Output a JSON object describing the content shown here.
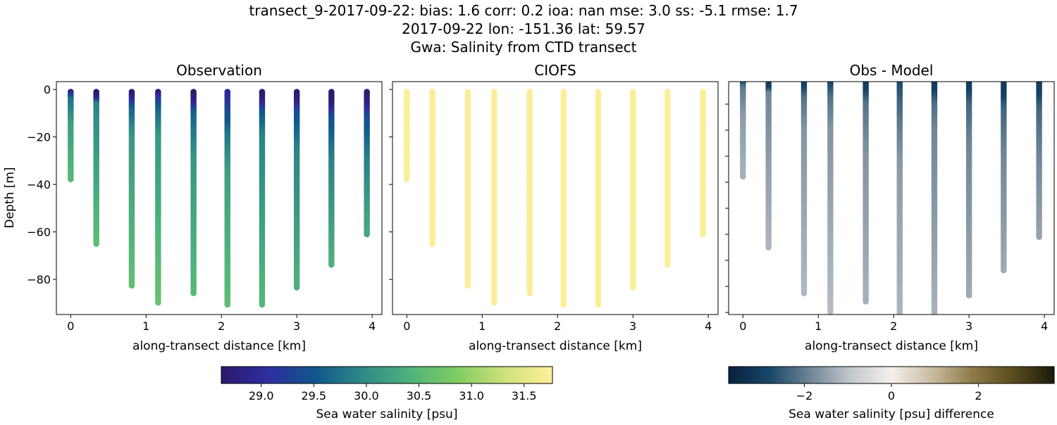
{
  "title_lines": [
    "transect_9-2017-09-22: bias: 1.6  corr: 0.2  ioa: nan  mse: 3.0  ss: -5.1  rmse: 1.7",
    "2017-09-22 lon: -151.36 lat: 59.57",
    "Gwa: Salinity from CTD transect"
  ],
  "chart_data": [
    {
      "type": "scatter",
      "title": "Observation",
      "xlabel": "along-transect distance [km]",
      "ylabel": "Depth [m]",
      "xlim": [
        -0.19,
        4.13
      ],
      "ylim": [
        -94.8,
        3.3
      ],
      "xticks": [
        0,
        1,
        2,
        3,
        4
      ],
      "yticks": [
        0,
        -20,
        -40,
        -60,
        -80
      ],
      "colormap": "haline",
      "stations": [
        {
          "x": 0.0,
          "max_depth": 38,
          "profile": [
            [
              1,
              28.7
            ],
            [
              4,
              29.7
            ],
            [
              15,
              30.2
            ],
            [
              38,
              30.5
            ]
          ]
        },
        {
          "x": 0.34,
          "max_depth": 65,
          "profile": [
            [
              1,
              28.6
            ],
            [
              4,
              28.8
            ],
            [
              6,
              29.9
            ],
            [
              30,
              30.2
            ],
            [
              65,
              30.55
            ]
          ]
        },
        {
          "x": 0.81,
          "max_depth": 83,
          "profile": [
            [
              1,
              28.6
            ],
            [
              4,
              28.9
            ],
            [
              8,
              29.6
            ],
            [
              20,
              30.1
            ],
            [
              83,
              30.6
            ]
          ]
        },
        {
          "x": 1.16,
          "max_depth": 90,
          "profile": [
            [
              1,
              28.6
            ],
            [
              3,
              29.0
            ],
            [
              8,
              29.6
            ],
            [
              20,
              30.1
            ],
            [
              90,
              30.65
            ]
          ]
        },
        {
          "x": 1.63,
          "max_depth": 86,
          "profile": [
            [
              1,
              28.6
            ],
            [
              5,
              28.8
            ],
            [
              10,
              29.6
            ],
            [
              30,
              30.1
            ],
            [
              86,
              30.5
            ]
          ]
        },
        {
          "x": 2.08,
          "max_depth": 91,
          "profile": [
            [
              1,
              28.9
            ],
            [
              8,
              29.3
            ],
            [
              20,
              29.8
            ],
            [
              35,
              30.2
            ],
            [
              91,
              30.55
            ]
          ]
        },
        {
          "x": 2.54,
          "max_depth": 91,
          "profile": [
            [
              1,
              28.6
            ],
            [
              5,
              28.8
            ],
            [
              10,
              29.5
            ],
            [
              20,
              29.9
            ],
            [
              91,
              30.5
            ]
          ]
        },
        {
          "x": 3.0,
          "max_depth": 84,
          "profile": [
            [
              1,
              28.6
            ],
            [
              5,
              28.8
            ],
            [
              10,
              29.4
            ],
            [
              25,
              29.9
            ],
            [
              84,
              30.4
            ]
          ]
        },
        {
          "x": 3.46,
          "max_depth": 74,
          "profile": [
            [
              1,
              28.6
            ],
            [
              6,
              28.7
            ],
            [
              12,
              29.4
            ],
            [
              30,
              29.9
            ],
            [
              74,
              30.4
            ]
          ]
        },
        {
          "x": 3.93,
          "max_depth": 61,
          "profile": [
            [
              1,
              28.6
            ],
            [
              6,
              28.8
            ],
            [
              12,
              29.4
            ],
            [
              30,
              29.9
            ],
            [
              61,
              30.3
            ]
          ]
        }
      ]
    },
    {
      "type": "scatter",
      "title": "CIOFS",
      "xlabel": "along-transect distance [km]",
      "xlim": [
        -0.19,
        4.13
      ],
      "ylim": [
        -94.8,
        3.3
      ],
      "xticks": [
        0,
        1,
        2,
        3,
        4
      ],
      "colormap": "haline",
      "model_salinity": 31.75
    },
    {
      "type": "scatter",
      "title": "Obs - Model",
      "xlabel": "along-transect distance [km]",
      "xlim": [
        -0.19,
        4.13
      ],
      "ylim": [
        -90.8,
        -1.35
      ],
      "xticks": [
        0,
        1,
        2,
        3,
        4
      ],
      "yticks_unlabeled": [
        -10,
        -20,
        -30,
        -40,
        -50,
        -60,
        -70,
        -80,
        -90
      ],
      "colormap": "diff"
    }
  ],
  "colorbars": [
    {
      "label": "Sea water salinity [psu]",
      "range": [
        28.62,
        31.77
      ],
      "ticks": [
        "29.0",
        "29.5",
        "30.0",
        "30.5",
        "31.0",
        "31.5"
      ],
      "stops": [
        "#2a1a6c",
        "#2e2ea0",
        "#10578c",
        "#2f8a87",
        "#4fb37b",
        "#80ce62",
        "#d0e27a",
        "#fdef9a"
      ]
    },
    {
      "label": "Sea water salinity [psu] difference",
      "range": [
        -3.74,
        3.74
      ],
      "ticks": [
        "−2",
        "0",
        "2"
      ],
      "stops": [
        "#08203e",
        "#18476a",
        "#6e8596",
        "#c4c8cc",
        "#f5f0ee",
        "#c8bba0",
        "#8d7a48",
        "#5a4c1e",
        "#1a1a0a"
      ]
    }
  ]
}
